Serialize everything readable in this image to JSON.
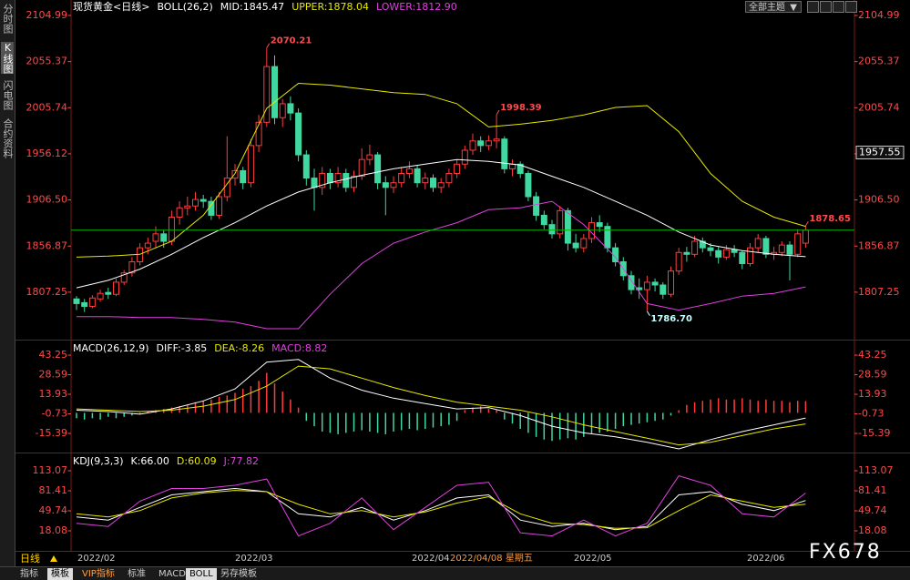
{
  "chart_data": [
    {
      "type": "candlestick",
      "title": "现货黄金<日线>",
      "indicator": "BOLL(26,2)",
      "legend": [
        {
          "text": "MID:1845.47",
          "color": "#ffffff"
        },
        {
          "text": "UPPER:1878.04",
          "color": "#e8e800"
        },
        {
          "text": "LOWER:1812.90",
          "color": "#e040e0"
        }
      ],
      "up_color": "#ff3c3c",
      "down_color": "#40d8a0",
      "price_line_color": "#00b400",
      "ylim": [
        1757.2,
        2121.6
      ],
      "yticks": [
        2104.99,
        2055.37,
        2005.74,
        1956.12,
        {
          "value": 1906.5,
          "label": "1906.50"
        },
        1856.87,
        1807.25
      ],
      "ohlc": [
        [
          1800,
          1803,
          1788,
          1795
        ],
        [
          1796,
          1800,
          1786,
          1792
        ],
        [
          1792,
          1804,
          1790,
          1801
        ],
        [
          1800,
          1810,
          1797,
          1806
        ],
        [
          1807,
          1812,
          1800,
          1805
        ],
        [
          1805,
          1822,
          1803,
          1818
        ],
        [
          1818,
          1831,
          1815,
          1828
        ],
        [
          1828,
          1845,
          1824,
          1840
        ],
        [
          1840,
          1860,
          1836,
          1855
        ],
        [
          1855,
          1866,
          1848,
          1860
        ],
        [
          1862,
          1878,
          1855,
          1870
        ],
        [
          1870,
          1874,
          1855,
          1862
        ],
        [
          1862,
          1895,
          1858,
          1888
        ],
        [
          1888,
          1905,
          1880,
          1898
        ],
        [
          1898,
          1910,
          1890,
          1900
        ],
        [
          1900,
          1915,
          1895,
          1907
        ],
        [
          1907,
          1912,
          1898,
          1905
        ],
        [
          1905,
          1910,
          1885,
          1890
        ],
        [
          1890,
          1915,
          1886,
          1910
        ],
        [
          1910,
          1975,
          1905,
          1930
        ],
        [
          1930,
          1945,
          1922,
          1938
        ],
        [
          1938,
          1942,
          1918,
          1925
        ],
        [
          1925,
          1972,
          1920,
          1965
        ],
        [
          1965,
          1998,
          1958,
          1990
        ],
        [
          1990,
          2070.21,
          1985,
          2050
        ],
        [
          2050,
          2062,
          1988,
          1995
        ],
        [
          1995,
          2015,
          1985,
          2010
        ],
        [
          2010,
          2018,
          1992,
          2000
        ],
        [
          2000,
          2005,
          1948,
          1955
        ],
        [
          1955,
          1960,
          1922,
          1930
        ],
        [
          1930,
          1940,
          1895,
          1920
        ],
        [
          1920,
          1942,
          1912,
          1935
        ],
        [
          1935,
          1940,
          1918,
          1925
        ],
        [
          1925,
          1942,
          1920,
          1935
        ],
        [
          1935,
          1940,
          1915,
          1920
        ],
        [
          1920,
          1938,
          1915,
          1932
        ],
        [
          1932,
          1962,
          1928,
          1950
        ],
        [
          1950,
          1966,
          1944,
          1955
        ],
        [
          1955,
          1958,
          1918,
          1925
        ],
        [
          1925,
          1932,
          1890,
          1920
        ],
        [
          1920,
          1932,
          1914,
          1925
        ],
        [
          1925,
          1942,
          1920,
          1935
        ],
        [
          1935,
          1948,
          1930,
          1940
        ],
        [
          1940,
          1944,
          1920,
          1925
        ],
        [
          1925,
          1936,
          1918,
          1930
        ],
        [
          1930,
          1934,
          1915,
          1920
        ],
        [
          1920,
          1930,
          1914,
          1925
        ],
        [
          1925,
          1940,
          1920,
          1935
        ],
        [
          1935,
          1950,
          1930,
          1945
        ],
        [
          1945,
          1965,
          1940,
          1960
        ],
        [
          1960,
          1978,
          1955,
          1970
        ],
        [
          1970,
          1975,
          1958,
          1965
        ],
        [
          1965,
          1976,
          1960,
          1970
        ],
        [
          1970,
          1998.39,
          1962,
          1972
        ],
        [
          1972,
          1975,
          1935,
          1940
        ],
        [
          1940,
          1950,
          1932,
          1945
        ],
        [
          1945,
          1948,
          1930,
          1935
        ],
        [
          1935,
          1938,
          1905,
          1910
        ],
        [
          1910,
          1915,
          1884,
          1890
        ],
        [
          1890,
          1895,
          1875,
          1880
        ],
        [
          1880,
          1885,
          1865,
          1870
        ],
        [
          1870,
          1900,
          1865,
          1895
        ],
        [
          1895,
          1898,
          1852,
          1860
        ],
        [
          1860,
          1870,
          1850,
          1855
        ],
        [
          1855,
          1870,
          1850,
          1865
        ],
        [
          1865,
          1888,
          1860,
          1882
        ],
        [
          1882,
          1890,
          1872,
          1878
        ],
        [
          1878,
          1882,
          1850,
          1855
        ],
        [
          1855,
          1860,
          1835,
          1840
        ],
        [
          1840,
          1845,
          1820,
          1825
        ],
        [
          1825,
          1830,
          1805,
          1810
        ],
        [
          1812,
          1822,
          1800,
          1810
        ],
        [
          1810,
          1825,
          1786.7,
          1818
        ],
        [
          1818,
          1822,
          1808,
          1815
        ],
        [
          1815,
          1818,
          1800,
          1805
        ],
        [
          1805,
          1835,
          1802,
          1830
        ],
        [
          1830,
          1855,
          1826,
          1850
        ],
        [
          1850,
          1856,
          1840,
          1848
        ],
        [
          1848,
          1868,
          1845,
          1862
        ],
        [
          1862,
          1866,
          1850,
          1855
        ],
        [
          1855,
          1860,
          1846,
          1852
        ],
        [
          1852,
          1856,
          1838,
          1845
        ],
        [
          1845,
          1858,
          1842,
          1853
        ],
        [
          1853,
          1858,
          1845,
          1850
        ],
        [
          1850,
          1852,
          1832,
          1838
        ],
        [
          1838,
          1860,
          1835,
          1855
        ],
        [
          1855,
          1870,
          1850,
          1865
        ],
        [
          1865,
          1868,
          1844,
          1848
        ],
        [
          1848,
          1856,
          1842,
          1850
        ],
        [
          1850,
          1862,
          1846,
          1858
        ],
        [
          1858,
          1862,
          1820,
          1848
        ],
        [
          1848,
          1875,
          1845,
          1870
        ],
        [
          1860,
          1878.65,
          1855,
          1874
        ]
      ],
      "series": [
        {
          "name": "MID",
          "color": "#ffffff",
          "x": [
            0,
            4,
            8,
            12,
            16,
            20,
            24,
            28,
            32,
            36,
            40,
            44,
            48,
            52,
            56,
            60,
            64,
            68,
            72,
            76,
            80,
            84,
            88,
            92
          ],
          "values": [
            1812,
            1820,
            1832,
            1848,
            1866,
            1882,
            1900,
            1915,
            1925,
            1933,
            1940,
            1945,
            1950,
            1948,
            1944,
            1932,
            1920,
            1905,
            1890,
            1872,
            1858,
            1852,
            1848,
            1845.47
          ]
        },
        {
          "name": "UPPER",
          "color": "#e8e800",
          "x": [
            0,
            4,
            8,
            12,
            16,
            20,
            24,
            28,
            32,
            36,
            40,
            44,
            48,
            52,
            56,
            60,
            64,
            68,
            72,
            76,
            80,
            84,
            88,
            92
          ],
          "values": [
            1845,
            1846,
            1848,
            1862,
            1890,
            1935,
            2005,
            2032,
            2030,
            2026,
            2022,
            2020,
            2010,
            1985,
            1988,
            1992,
            1998,
            2006,
            2008,
            1980,
            1935,
            1905,
            1888,
            1878.04
          ]
        },
        {
          "name": "LOWER",
          "color": "#e040e0",
          "x": [
            0,
            4,
            8,
            12,
            16,
            20,
            24,
            28,
            32,
            36,
            40,
            44,
            48,
            52,
            56,
            60,
            64,
            68,
            72,
            76,
            80,
            84,
            88,
            92
          ],
          "values": [
            1781,
            1781,
            1780,
            1780,
            1778,
            1775,
            1768,
            1768,
            1805,
            1838,
            1860,
            1872,
            1882,
            1896,
            1898,
            1905,
            1880,
            1845,
            1795,
            1788,
            1795,
            1803,
            1806,
            1812.9
          ]
        }
      ],
      "annotations": [
        "2070.21",
        "1998.39",
        "1786.70",
        "1878.65"
      ],
      "cursor_price": 1957.55
    },
    {
      "type": "macd",
      "title": "MACD(26,12,9)",
      "legend": [
        {
          "text": "DIFF:-3.85",
          "color": "#ffffff"
        },
        {
          "text": "DEA:-8.26",
          "color": "#e8e800"
        },
        {
          "text": "MACD:8.82",
          "color": "#e040e0"
        }
      ],
      "ylim": [
        -29.7,
        53.5
      ],
      "yticks": [
        43.25,
        28.59,
        13.93,
        -0.73,
        -15.39
      ],
      "series": [
        {
          "name": "DIFF",
          "color": "#ffffff",
          "x": [
            0,
            4,
            8,
            12,
            16,
            20,
            24,
            28,
            32,
            36,
            40,
            44,
            48,
            52,
            56,
            60,
            64,
            68,
            72,
            76,
            80,
            84,
            88,
            92
          ],
          "values": [
            2,
            1,
            -1,
            3,
            9,
            18,
            38,
            40,
            26,
            17,
            11,
            7,
            3,
            4,
            -2,
            -10,
            -15,
            -18,
            -22,
            -27,
            -20,
            -14,
            -9,
            -3.85
          ]
        },
        {
          "name": "DEA",
          "color": "#e8e800",
          "x": [
            0,
            4,
            8,
            12,
            16,
            20,
            24,
            28,
            32,
            36,
            40,
            44,
            48,
            52,
            56,
            60,
            64,
            68,
            72,
            76,
            80,
            84,
            88,
            92
          ],
          "values": [
            3,
            2,
            1,
            2,
            5,
            10,
            20,
            35,
            33,
            26,
            19,
            13,
            8,
            5,
            2,
            -3,
            -9,
            -14,
            -19,
            -24,
            -22,
            -17,
            -12,
            -8.26
          ]
        }
      ],
      "histogram": {
        "name": "MACD",
        "up_color": "#ff3c3c",
        "down_color": "#40d8a0",
        "values": [
          -4,
          -5,
          -4,
          -5,
          -3,
          -4,
          -3,
          -2,
          -1,
          1,
          2,
          3,
          4,
          5,
          6,
          8,
          9,
          10,
          12,
          13,
          15,
          18,
          20,
          24,
          30,
          22,
          16,
          10,
          4,
          -6,
          -10,
          -14,
          -15,
          -16,
          -15,
          -14,
          -13,
          -14,
          -15,
          -16,
          -14,
          -13,
          -12,
          -13,
          -12,
          -11,
          -10,
          -9,
          -6,
          2,
          4,
          5,
          3,
          2,
          -5,
          -8,
          -12,
          -15,
          -18,
          -20,
          -21,
          -20,
          -19,
          -20,
          -18,
          -16,
          -15,
          -14,
          -12,
          -10,
          -9,
          -8,
          -7,
          -6,
          -5,
          -2,
          2,
          6,
          8,
          9,
          10,
          11,
          10,
          10,
          11,
          10,
          9,
          10,
          9,
          9,
          8,
          9,
          8.82
        ]
      }
    },
    {
      "type": "line",
      "title": "KDJ(9,3,3)",
      "legend": [
        {
          "text": "K:66.00",
          "color": "#ffffff"
        },
        {
          "text": "D:60.09",
          "color": "#e8e800"
        },
        {
          "text": "J:77.82",
          "color": "#e040e0"
        }
      ],
      "ylim": [
        -13.6,
        139
      ],
      "yticks": [
        113.07,
        81.41,
        49.74,
        18.08
      ],
      "series": [
        {
          "name": "K",
          "color": "#ffffff",
          "x": [
            0,
            4,
            8,
            12,
            16,
            20,
            24,
            28,
            32,
            36,
            40,
            44,
            48,
            52,
            56,
            60,
            64,
            68,
            72,
            76,
            80,
            84,
            88,
            92
          ],
          "values": [
            40,
            35,
            55,
            75,
            80,
            85,
            80,
            45,
            40,
            55,
            35,
            50,
            70,
            75,
            35,
            25,
            30,
            20,
            25,
            75,
            80,
            60,
            50,
            66
          ]
        },
        {
          "name": "D",
          "color": "#e8e800",
          "x": [
            0,
            4,
            8,
            12,
            16,
            20,
            24,
            28,
            32,
            36,
            40,
            44,
            48,
            52,
            56,
            60,
            64,
            68,
            72,
            76,
            80,
            84,
            88,
            92
          ],
          "values": [
            45,
            40,
            50,
            70,
            78,
            82,
            80,
            60,
            45,
            50,
            40,
            48,
            62,
            72,
            45,
            30,
            28,
            22,
            23,
            50,
            75,
            65,
            55,
            60.09
          ]
        },
        {
          "name": "J",
          "color": "#e040e0",
          "x": [
            0,
            4,
            8,
            12,
            16,
            20,
            24,
            28,
            32,
            36,
            40,
            44,
            48,
            52,
            56,
            60,
            64,
            68,
            72,
            76,
            80,
            84,
            88,
            92
          ],
          "values": [
            30,
            25,
            65,
            85,
            85,
            90,
            100,
            10,
            30,
            70,
            20,
            55,
            90,
            95,
            15,
            10,
            35,
            10,
            30,
            105,
            90,
            45,
            40,
            77.82
          ]
        }
      ]
    }
  ],
  "ui": {
    "sidebar_tabs": [
      "分时图",
      "K线图",
      "闪电图",
      "合约资料"
    ],
    "theme_select": "全部主题",
    "period": "日线",
    "x_labels": [
      "2022/02",
      "2022/03",
      "2022/04",
      "2022/05",
      "2022/06"
    ],
    "cursor_date": "2022/04/08 星期五",
    "bottom_tabs": [
      "指标",
      "模板",
      "VIP指标",
      "标准",
      "MACD",
      "BOLL",
      "另存模板"
    ],
    "watermark": "FX678"
  }
}
